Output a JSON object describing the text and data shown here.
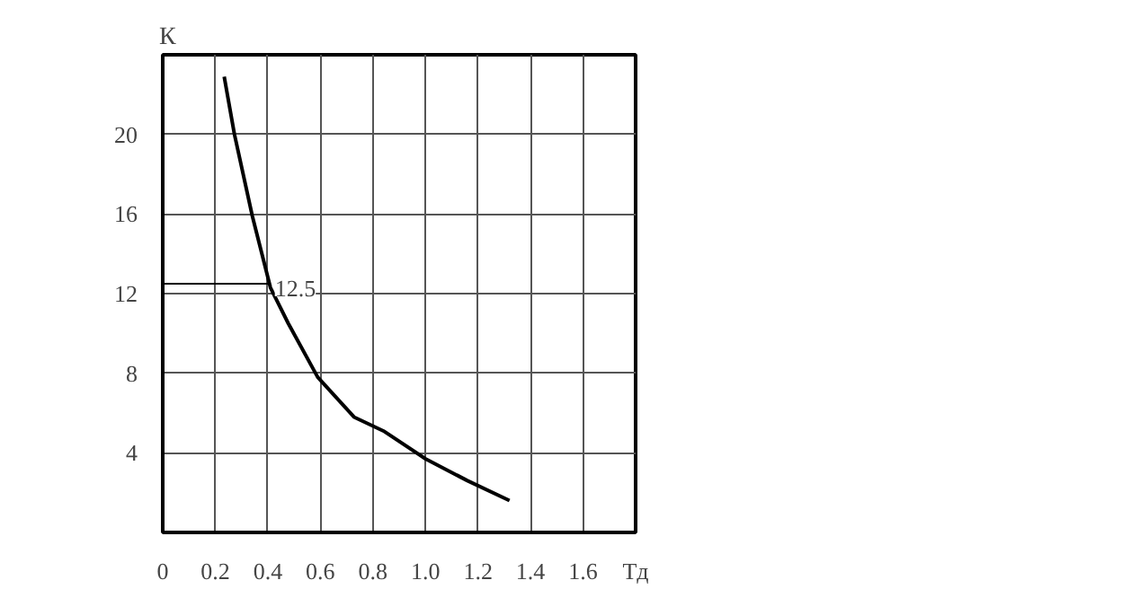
{
  "chart_data": {
    "type": "line",
    "xlabel": "Tд",
    "ylabel": "К",
    "x": [
      0.234,
      0.273,
      0.341,
      0.41,
      0.478,
      0.59,
      0.728,
      0.84,
      1.0,
      1.16,
      1.32
    ],
    "series": [
      {
        "color": "#000000",
        "values": [
          22.9,
          20.0,
          15.9,
          12.3,
          10.5,
          7.8,
          5.8,
          5.1,
          3.7,
          2.6,
          1.6
        ]
      }
    ],
    "xlim": [
      0,
      1.8
    ],
    "xticks": [
      0,
      0.2,
      0.4,
      0.6,
      0.8,
      {
        "value": 1.0,
        "label": "1.0"
      },
      1.2,
      1.4,
      1.6
    ],
    "ylim": [
      0,
      24
    ],
    "yticks": [
      4,
      8,
      12,
      16,
      20
    ],
    "ref_lines": [
      {
        "axis": "y",
        "value": 12.5,
        "label": "12.5"
      }
    ],
    "grid": true,
    "marker": "none",
    "line_style": "solid"
  }
}
